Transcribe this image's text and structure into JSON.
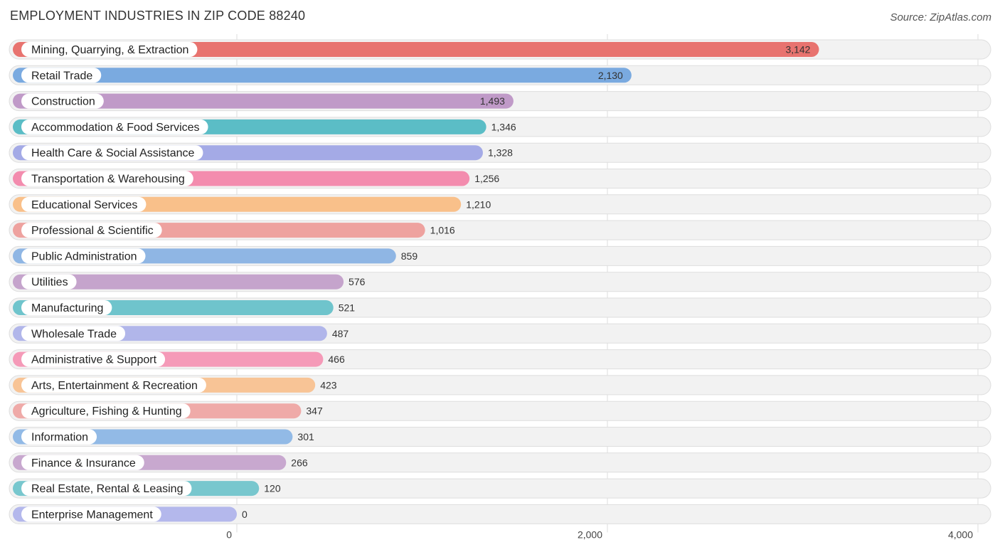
{
  "title": "EMPLOYMENT INDUSTRIES IN ZIP CODE 88240",
  "source": "Source: ZipAtlas.com",
  "chart_data": {
    "type": "bar",
    "orientation": "horizontal",
    "title": "EMPLOYMENT INDUSTRIES IN ZIP CODE 88240",
    "xlim": [
      0,
      4000
    ],
    "xticks": [
      0,
      2000,
      4000
    ],
    "xtick_labels": [
      "0",
      "2,000",
      "4,000"
    ],
    "grid": true,
    "categories": [
      "Mining, Quarrying, & Extraction",
      "Retail Trade",
      "Construction",
      "Accommodation & Food Services",
      "Health Care & Social Assistance",
      "Transportation & Warehousing",
      "Educational Services",
      "Professional & Scientific",
      "Public Administration",
      "Utilities",
      "Manufacturing",
      "Wholesale Trade",
      "Administrative & Support",
      "Arts, Entertainment & Recreation",
      "Agriculture, Fishing & Hunting",
      "Information",
      "Finance & Insurance",
      "Real Estate, Rental & Leasing",
      "Enterprise Management"
    ],
    "values": [
      3142,
      2130,
      1493,
      1346,
      1328,
      1256,
      1210,
      1016,
      859,
      576,
      521,
      487,
      466,
      423,
      347,
      301,
      266,
      120,
      0
    ],
    "value_labels": [
      "3,142",
      "2,130",
      "1,493",
      "1,346",
      "1,328",
      "1,256",
      "1,210",
      "1,016",
      "859",
      "576",
      "521",
      "487",
      "466",
      "423",
      "347",
      "301",
      "266",
      "120",
      "0"
    ],
    "colors": [
      "#e8736f",
      "#7aaae0",
      "#c09ac8",
      "#5bbdc6",
      "#a4aae6",
      "#f38cae",
      "#f9c08a",
      "#eea29f",
      "#8fb6e4",
      "#c5a4cc",
      "#6fc4cc",
      "#b1b6ea",
      "#f59ab8",
      "#f8c496",
      "#efaaa8",
      "#92bae6",
      "#c8a8cf",
      "#78c7ce",
      "#b4b8ec"
    ]
  }
}
